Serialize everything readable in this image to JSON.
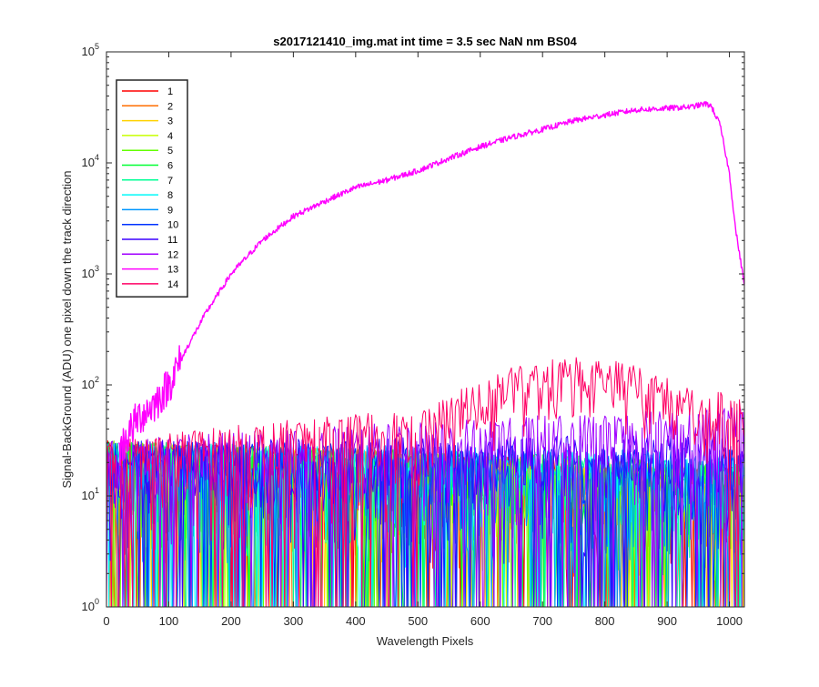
{
  "chart_data": {
    "type": "line",
    "title": "s2017121410_img.mat int time = 3.5 sec  NaN nm BS04",
    "xlabel": "Wavelength Pixels",
    "ylabel": "Signal-BackGround (ADU) one pixel down the track direction",
    "xlim": [
      0,
      1024
    ],
    "ylim": [
      1,
      100000
    ],
    "yscale": "log",
    "grid": false,
    "legend_position": "top-left",
    "x_ticks": [
      0,
      100,
      200,
      300,
      400,
      500,
      600,
      700,
      800,
      900,
      1000
    ],
    "x_tick_labels": [
      "0",
      "100",
      "200",
      "300",
      "400",
      "500",
      "600",
      "700",
      "800",
      "900",
      "1000"
    ],
    "y_ticks": [
      1,
      10,
      100,
      1000,
      10000,
      100000
    ],
    "y_tick_labels": [
      {
        "base": "10",
        "exp": "0"
      },
      {
        "base": "10",
        "exp": "1"
      },
      {
        "base": "10",
        "exp": "2"
      },
      {
        "base": "10",
        "exp": "3"
      },
      {
        "base": "10",
        "exp": "4"
      },
      {
        "base": "10",
        "exp": "5"
      }
    ],
    "series": [
      {
        "name": "1",
        "color": "#ff0000",
        "kind": "noise",
        "level_left": 14,
        "level_right": 8
      },
      {
        "name": "2",
        "color": "#ff6e00",
        "kind": "noise",
        "level_left": 14,
        "level_right": 8
      },
      {
        "name": "3",
        "color": "#ffd200",
        "kind": "noise",
        "level_left": 14,
        "level_right": 8
      },
      {
        "name": "4",
        "color": "#c8ff00",
        "kind": "noise",
        "level_left": 14,
        "level_right": 8
      },
      {
        "name": "5",
        "color": "#64ff00",
        "kind": "noise",
        "level_left": 14,
        "level_right": 9
      },
      {
        "name": "6",
        "color": "#00ff32",
        "kind": "noise",
        "level_left": 14,
        "level_right": 9
      },
      {
        "name": "7",
        "color": "#00ff96",
        "kind": "noise",
        "level_left": 14,
        "level_right": 9
      },
      {
        "name": "8",
        "color": "#00fafa",
        "kind": "noise",
        "level_left": 14,
        "level_right": 10
      },
      {
        "name": "9",
        "color": "#0096ff",
        "kind": "noise",
        "level_left": 14,
        "level_right": 11
      },
      {
        "name": "10",
        "color": "#0032ff",
        "kind": "noise",
        "level_left": 14,
        "level_right": 12
      },
      {
        "name": "11",
        "color": "#3c00ff",
        "kind": "noise",
        "level_left": 14,
        "level_right": 16
      },
      {
        "name": "12",
        "color": "#a000ff",
        "kind": "noise",
        "level_left": 14,
        "level_right": 28
      },
      {
        "name": "13",
        "color": "#ff00ff",
        "kind": "main",
        "x": [
          20,
          50,
          80,
          100,
          130,
          160,
          200,
          250,
          300,
          350,
          400,
          450,
          500,
          550,
          600,
          650,
          700,
          750,
          800,
          850,
          900,
          940,
          960,
          970,
          985,
          1000,
          1010,
          1024
        ],
        "y": [
          25,
          50,
          70,
          100,
          220,
          450,
          1000,
          2000,
          3300,
          4500,
          6000,
          7000,
          8500,
          11000,
          14000,
          17000,
          20000,
          24000,
          27000,
          30000,
          31000,
          32000,
          34000,
          33000,
          22000,
          8000,
          2500,
          800
        ]
      },
      {
        "name": "14",
        "color": "#ff0064",
        "kind": "noise_hump",
        "level_left": 14,
        "level_right": 40,
        "hump_center": 760,
        "hump_peak": 75
      }
    ]
  }
}
